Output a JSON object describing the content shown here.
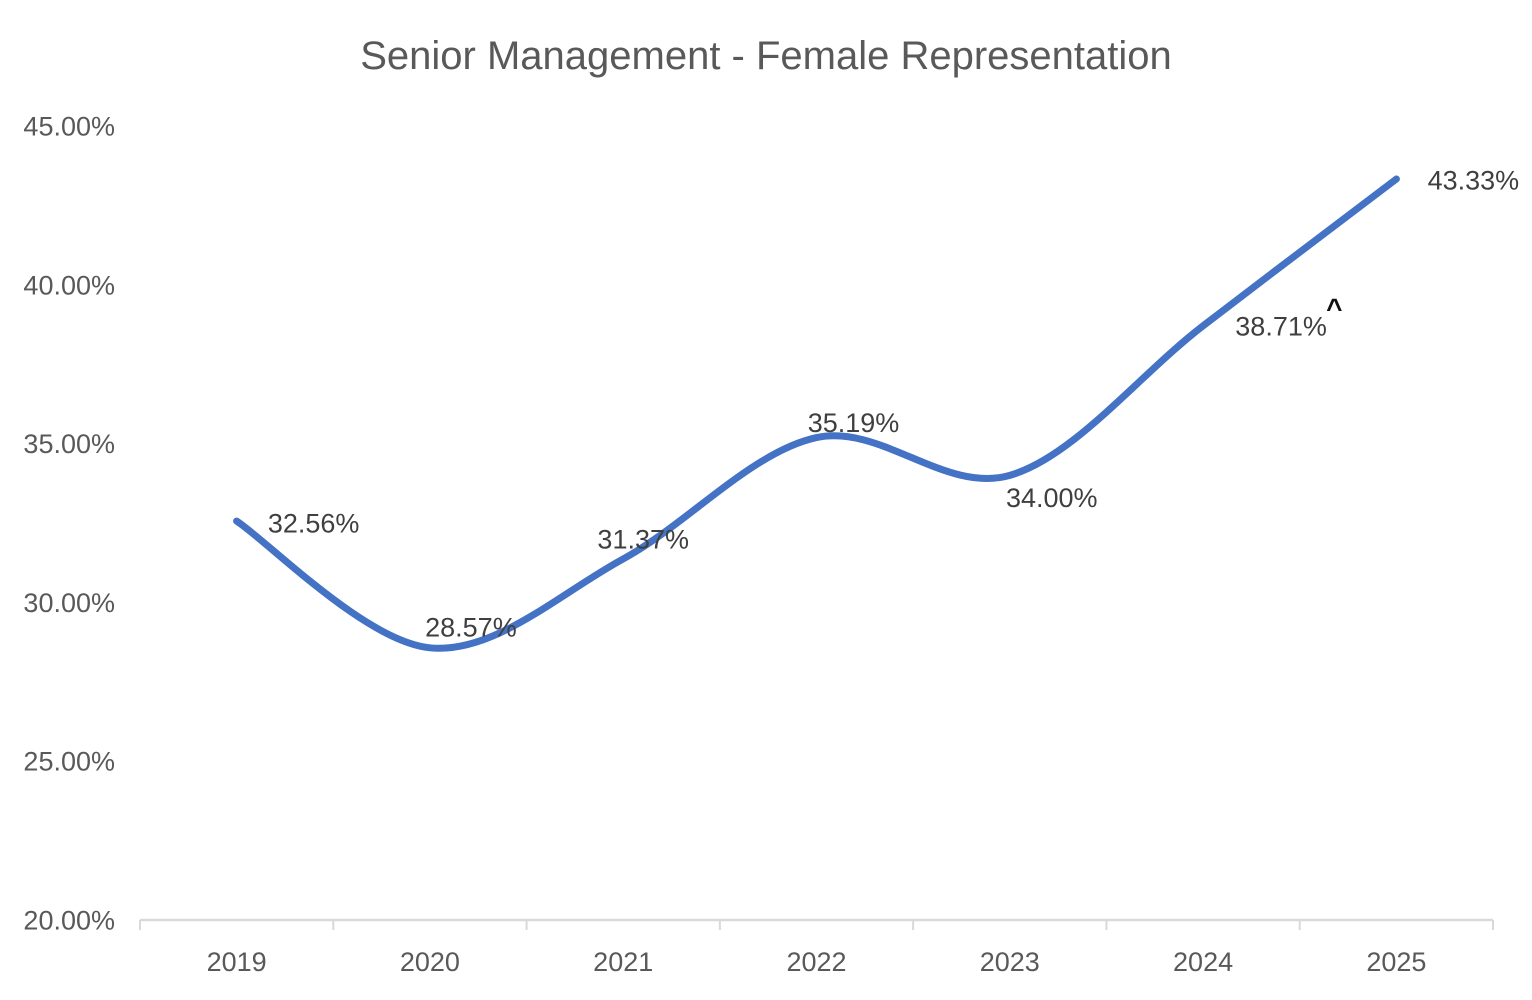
{
  "chart_data": {
    "type": "line",
    "title": "Senior Management - Female Representation",
    "categories": [
      "2019",
      "2020",
      "2021",
      "2022",
      "2023",
      "2024",
      "2025"
    ],
    "values": [
      32.56,
      28.57,
      31.37,
      35.19,
      34.0,
      38.71,
      43.33
    ],
    "data_labels": [
      "32.56%",
      "28.57%",
      "31.37%",
      "35.19%",
      "34.00%",
      "38.71%",
      "43.33%"
    ],
    "annotation": {
      "category": "2024",
      "text": "^"
    },
    "xlabel": "",
    "ylabel": "",
    "ylim": [
      20,
      45
    ],
    "ytick_values": [
      20,
      25,
      30,
      35,
      40,
      45
    ],
    "ytick_labels": [
      "20.00%",
      "25.00%",
      "30.00%",
      "35.00%",
      "40.00%",
      "45.00%"
    ],
    "grid": false,
    "legend": "none",
    "smooth_line": true,
    "colors": {
      "line": "#4472C4",
      "axis": "#D9D9D9",
      "axis_text": "#595959",
      "title_text": "#595959",
      "data_label_text": "#3F3F3F",
      "annotation_text": "#111111"
    }
  }
}
